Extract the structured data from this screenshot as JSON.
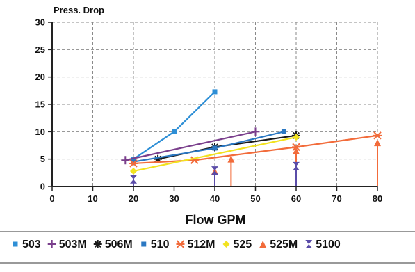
{
  "chart_data": {
    "type": "line",
    "title": "",
    "ylabel": "Press. Drop",
    "xlabel": "Flow GPM",
    "xlim": [
      0,
      80
    ],
    "ylim": [
      0,
      30
    ],
    "xticks": [
      "0",
      "10",
      "20",
      "30",
      "40",
      "50",
      "60",
      "70",
      "80"
    ],
    "yticks": [
      "0",
      "5",
      "10",
      "15",
      "20",
      "25",
      "30"
    ],
    "grid": "dashed",
    "legend_position": "bottom",
    "series": [
      {
        "name": "503",
        "color": "#2e8fd6",
        "marker": "square",
        "kind": "line",
        "points": [
          [
            20,
            5
          ],
          [
            30,
            10
          ],
          [
            40,
            17.3
          ]
        ]
      },
      {
        "name": "503M",
        "color": "#7a3f8c",
        "marker": "plus",
        "kind": "line",
        "points": [
          [
            18,
            4.8
          ],
          [
            50,
            10
          ]
        ]
      },
      {
        "name": "506M",
        "color": "#1a1a1a",
        "marker": "star",
        "kind": "line",
        "points": [
          [
            26,
            5
          ],
          [
            40,
            7.2
          ],
          [
            60,
            9.3
          ]
        ]
      },
      {
        "name": "510",
        "color": "#2b78c2",
        "marker": "square",
        "kind": "line",
        "points": [
          [
            20,
            4.5
          ],
          [
            40,
            7
          ],
          [
            57,
            10
          ]
        ]
      },
      {
        "name": "512M",
        "color": "#f26b3a",
        "marker": "cross",
        "kind": "line",
        "points": [
          [
            20,
            4.2
          ],
          [
            35,
            4.8
          ],
          [
            60,
            7.2
          ],
          [
            80,
            9.3
          ]
        ]
      },
      {
        "name": "525",
        "color": "#f2e21f",
        "marker": "diamond",
        "kind": "line",
        "points": [
          [
            20,
            2.8
          ],
          [
            60,
            9
          ]
        ]
      },
      {
        "name": "525M",
        "color": "#f26b3a",
        "marker": "arrow-up",
        "kind": "stem",
        "points": [
          [
            40,
            2.8
          ],
          [
            44,
            5
          ],
          [
            60,
            6.5
          ],
          [
            80,
            8
          ]
        ]
      },
      {
        "name": "5100",
        "color": "#5a4ca8",
        "marker": "bowtie",
        "kind": "stem",
        "points": [
          [
            20,
            1.3
          ],
          [
            40,
            2.9
          ],
          [
            60,
            3.7
          ]
        ]
      }
    ]
  }
}
